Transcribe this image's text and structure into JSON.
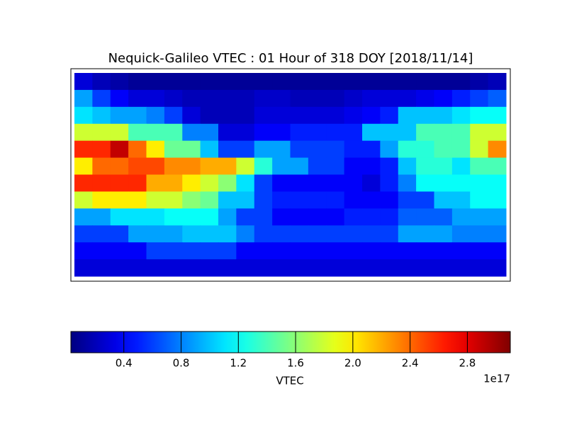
{
  "chart_data": {
    "type": "heatmap",
    "title": "Nequick-Galileo VTEC : 01 Hour of 318 DOY [2018/11/14]",
    "values": [
      [
        0.3,
        0.2,
        0.15,
        0.1,
        0.1,
        0.1,
        0.1,
        0.1,
        0.1,
        0.1,
        0.1,
        0.1,
        0.1,
        0.1,
        0.1,
        0.1,
        0.1,
        0.1,
        0.1,
        0.1,
        0.1,
        0.1,
        0.15,
        0.2
      ],
      [
        0.9,
        0.6,
        0.4,
        0.3,
        0.3,
        0.25,
        0.2,
        0.2,
        0.2,
        0.2,
        0.25,
        0.25,
        0.2,
        0.2,
        0.2,
        0.25,
        0.3,
        0.3,
        0.3,
        0.35,
        0.4,
        0.5,
        0.6,
        0.7
      ],
      [
        1.1,
        1.0,
        0.9,
        0.9,
        0.8,
        0.6,
        0.3,
        0.2,
        0.2,
        0.2,
        0.3,
        0.3,
        0.3,
        0.3,
        0.3,
        0.35,
        0.4,
        0.5,
        1.0,
        1.0,
        1.0,
        1.1,
        1.2,
        1.2
      ],
      [
        1.8,
        1.8,
        1.8,
        1.4,
        1.4,
        1.4,
        0.8,
        0.8,
        0.3,
        0.3,
        0.4,
        0.4,
        0.5,
        0.5,
        0.5,
        0.5,
        1.0,
        1.0,
        1.0,
        1.4,
        1.4,
        1.4,
        1.8,
        1.8
      ],
      [
        2.6,
        2.6,
        2.9,
        2.4,
        2.0,
        1.5,
        1.5,
        1.0,
        0.6,
        0.6,
        0.9,
        0.9,
        0.6,
        0.6,
        0.6,
        0.5,
        0.5,
        0.9,
        1.3,
        1.3,
        1.4,
        1.4,
        1.8,
        2.3
      ],
      [
        2.0,
        2.4,
        2.4,
        2.5,
        2.5,
        2.3,
        2.3,
        2.2,
        2.2,
        1.8,
        1.3,
        0.9,
        0.9,
        0.6,
        0.6,
        0.4,
        0.4,
        0.5,
        1.0,
        1.3,
        1.3,
        1.1,
        1.4,
        1.4
      ],
      [
        2.6,
        2.6,
        2.6,
        2.6,
        2.2,
        2.2,
        2.0,
        1.8,
        1.6,
        1.1,
        0.6,
        0.4,
        0.4,
        0.4,
        0.4,
        0.4,
        0.3,
        0.5,
        0.8,
        1.2,
        1.2,
        1.2,
        1.2,
        1.2
      ],
      [
        1.8,
        2.0,
        2.0,
        2.0,
        1.8,
        1.8,
        1.6,
        1.5,
        1.0,
        1.0,
        0.6,
        0.5,
        0.5,
        0.5,
        0.5,
        0.4,
        0.4,
        0.4,
        0.6,
        0.6,
        1.0,
        1.0,
        1.2,
        1.2
      ],
      [
        0.9,
        0.9,
        1.1,
        1.1,
        1.1,
        1.2,
        1.2,
        1.2,
        0.9,
        0.6,
        0.6,
        0.4,
        0.4,
        0.4,
        0.4,
        0.5,
        0.5,
        0.5,
        0.7,
        0.7,
        0.7,
        0.9,
        0.9,
        0.9
      ],
      [
        0.6,
        0.6,
        0.6,
        0.9,
        0.9,
        0.9,
        1.0,
        1.0,
        1.0,
        0.8,
        0.6,
        0.6,
        0.6,
        0.6,
        0.6,
        0.6,
        0.6,
        0.6,
        0.9,
        0.9,
        0.9,
        0.8,
        0.8,
        0.8
      ],
      [
        0.4,
        0.4,
        0.4,
        0.4,
        0.6,
        0.6,
        0.6,
        0.6,
        0.6,
        0.4,
        0.4,
        0.4,
        0.4,
        0.4,
        0.4,
        0.4,
        0.4,
        0.4,
        0.4,
        0.4,
        0.4,
        0.4,
        0.4,
        0.4
      ],
      [
        0.3,
        0.3,
        0.3,
        0.3,
        0.3,
        0.3,
        0.3,
        0.3,
        0.3,
        0.3,
        0.3,
        0.3,
        0.3,
        0.3,
        0.3,
        0.3,
        0.3,
        0.3,
        0.3,
        0.3,
        0.3,
        0.3,
        0.3,
        0.3
      ]
    ],
    "colormap": "jet",
    "colorbar": {
      "label": "VTEC",
      "offset_label": "1e17",
      "zlim": [
        0.03,
        3.1
      ],
      "ticks": [
        0.4,
        0.8,
        1.2,
        1.6,
        {
          "value": 2,
          "label": "2.0"
        },
        2.4,
        2.8
      ]
    }
  }
}
